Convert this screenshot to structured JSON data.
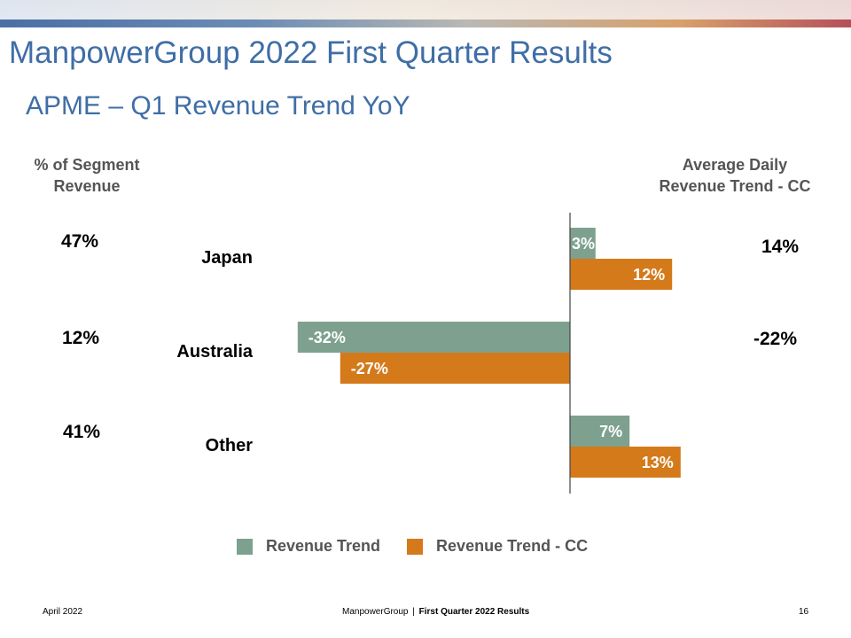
{
  "title": "ManpowerGroup 2022 First Quarter Results",
  "subtitle": "APME – Q1 Revenue Trend YoY",
  "left_header": [
    "% of Segment",
    "Revenue"
  ],
  "right_header": [
    "Average Daily",
    "Revenue Trend - CC"
  ],
  "segment_share": [
    "47%",
    "12%",
    "41%"
  ],
  "avg_daily_trend_cc": [
    "14%",
    "-22%"
  ],
  "chart_data": {
    "type": "bar",
    "orientation": "horizontal",
    "categories": [
      "Japan",
      "Australia",
      "Other"
    ],
    "series": [
      {
        "name": "Revenue Trend",
        "values": [
          3,
          -32,
          7
        ],
        "labels": [
          "3%",
          "-32%",
          "7%"
        ],
        "color": "#7ea18f"
      },
      {
        "name": "Revenue Trend - CC",
        "values": [
          12,
          -27,
          13
        ],
        "labels": [
          "12%",
          "-27%",
          "13%"
        ],
        "color": "#d47a1a"
      }
    ],
    "xlim": [
      -32,
      13
    ],
    "grid": false,
    "legend": "bottom"
  },
  "footer": {
    "date": "April 2022",
    "company": "ManpowerGroup",
    "separator": "|",
    "report": "First Quarter 2022 Results",
    "page": "16"
  }
}
